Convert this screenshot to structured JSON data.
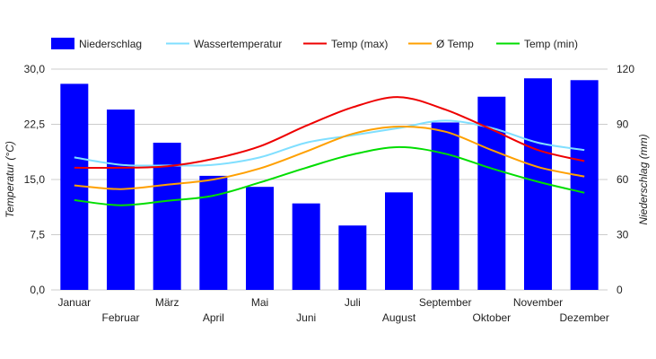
{
  "chart_data": {
    "type": "bar",
    "categories": [
      "Januar",
      "Februar",
      "März",
      "April",
      "Mai",
      "Juni",
      "Juli",
      "August",
      "September",
      "Oktober",
      "November",
      "Dezember"
    ],
    "bar_series": {
      "name": "Niederschlag",
      "color": "#0000ff",
      "axis": "right",
      "values": [
        112,
        98,
        80,
        62,
        56,
        47,
        35,
        53,
        91,
        105,
        115,
        114
      ]
    },
    "line_series": [
      {
        "name": "Wassertemperatur",
        "color": "#80dfff",
        "values": [
          18.0,
          17.0,
          16.9,
          17.0,
          18.0,
          20.0,
          21.0,
          22.0,
          23.0,
          22.0,
          20.0,
          19.0
        ]
      },
      {
        "name": "Temp (max)",
        "color": "#ee0000",
        "values": [
          16.6,
          16.6,
          16.8,
          17.8,
          19.5,
          22.3,
          24.8,
          26.2,
          24.5,
          21.8,
          19.0,
          17.5
        ]
      },
      {
        "name": "Ø Temp",
        "color": "#ffa000",
        "values": [
          14.2,
          13.7,
          14.3,
          15.0,
          16.5,
          18.8,
          21.2,
          22.2,
          21.5,
          19.0,
          16.7,
          15.4
        ]
      },
      {
        "name": "Temp (min)",
        "color": "#00dd00",
        "values": [
          12.2,
          11.5,
          12.1,
          12.8,
          14.6,
          16.6,
          18.4,
          19.4,
          18.5,
          16.5,
          14.7,
          13.2
        ]
      }
    ],
    "legend": [
      "Niederschlag",
      "Wassertemperatur",
      "Temp (max)",
      "Ø Temp",
      "Temp (min)"
    ],
    "legend_position": "top",
    "ylabel_left": "Temperatur (°C)",
    "ylabel_right": "Niederschlag (mm)",
    "ylim_left": [
      0,
      30
    ],
    "ylim_right": [
      0,
      120
    ],
    "yticks_left": [
      "0,0",
      "7,5",
      "15,0",
      "22,5",
      "30,0"
    ],
    "yticks_right": [
      "0",
      "30",
      "60",
      "90",
      "120"
    ],
    "grid": true
  }
}
